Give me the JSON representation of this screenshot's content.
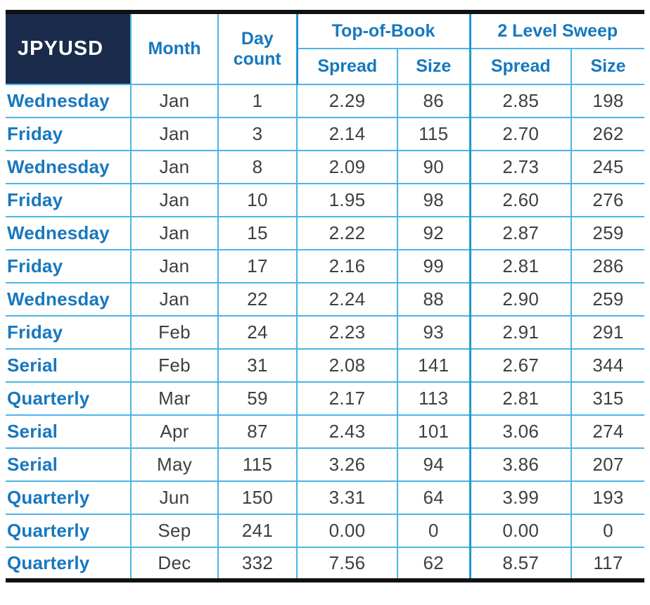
{
  "header": {
    "corner": "JPYUSD",
    "month": "Month",
    "day_count": "Day count",
    "group_top_of_book": "Top-of-Book",
    "group_two_level_sweep": "2 Level Sweep",
    "sub_spread": "Spread",
    "sub_size": "Size"
  },
  "colors": {
    "navy": "#1b2b4b",
    "blue_text": "#1778be",
    "grid_blue": "#4cb4e7",
    "group_separator_blue": "#2496d2",
    "data_text": "#3f3f41",
    "border_black": "#111111",
    "background": "#ffffff"
  },
  "chart_data": {
    "type": "table",
    "title": "JPYUSD",
    "column_groups": [
      {
        "label": "",
        "span": 3
      },
      {
        "label": "Top-of-Book",
        "span": 2
      },
      {
        "label": "2 Level Sweep",
        "span": 2
      }
    ],
    "columns": [
      "JPYUSD",
      "Month",
      "Day count",
      "Top-of-Book Spread",
      "Top-of-Book Size",
      "2 Level Sweep Spread",
      "2 Level Sweep Size"
    ],
    "rows": [
      [
        "Wednesday",
        "Jan",
        1,
        2.29,
        86,
        2.85,
        198
      ],
      [
        "Friday",
        "Jan",
        3,
        2.14,
        115,
        2.7,
        262
      ],
      [
        "Wednesday",
        "Jan",
        8,
        2.09,
        90,
        2.73,
        245
      ],
      [
        "Friday",
        "Jan",
        10,
        1.95,
        98,
        2.6,
        276
      ],
      [
        "Wednesday",
        "Jan",
        15,
        2.22,
        92,
        2.87,
        259
      ],
      [
        "Friday",
        "Jan",
        17,
        2.16,
        99,
        2.81,
        286
      ],
      [
        "Wednesday",
        "Jan",
        22,
        2.24,
        88,
        2.9,
        259
      ],
      [
        "Friday",
        "Feb",
        24,
        2.23,
        93,
        2.91,
        291
      ],
      [
        "Serial",
        "Feb",
        31,
        2.08,
        141,
        2.67,
        344
      ],
      [
        "Quarterly",
        "Mar",
        59,
        2.17,
        113,
        2.81,
        315
      ],
      [
        "Serial",
        "Apr",
        87,
        2.43,
        101,
        3.06,
        274
      ],
      [
        "Serial",
        "May",
        115,
        3.26,
        94,
        3.86,
        207
      ],
      [
        "Quarterly",
        "Jun",
        150,
        3.31,
        64,
        3.99,
        193
      ],
      [
        "Quarterly",
        "Sep",
        241,
        0.0,
        0,
        0.0,
        0
      ],
      [
        "Quarterly",
        "Dec",
        332,
        7.56,
        62,
        8.57,
        117
      ]
    ]
  }
}
